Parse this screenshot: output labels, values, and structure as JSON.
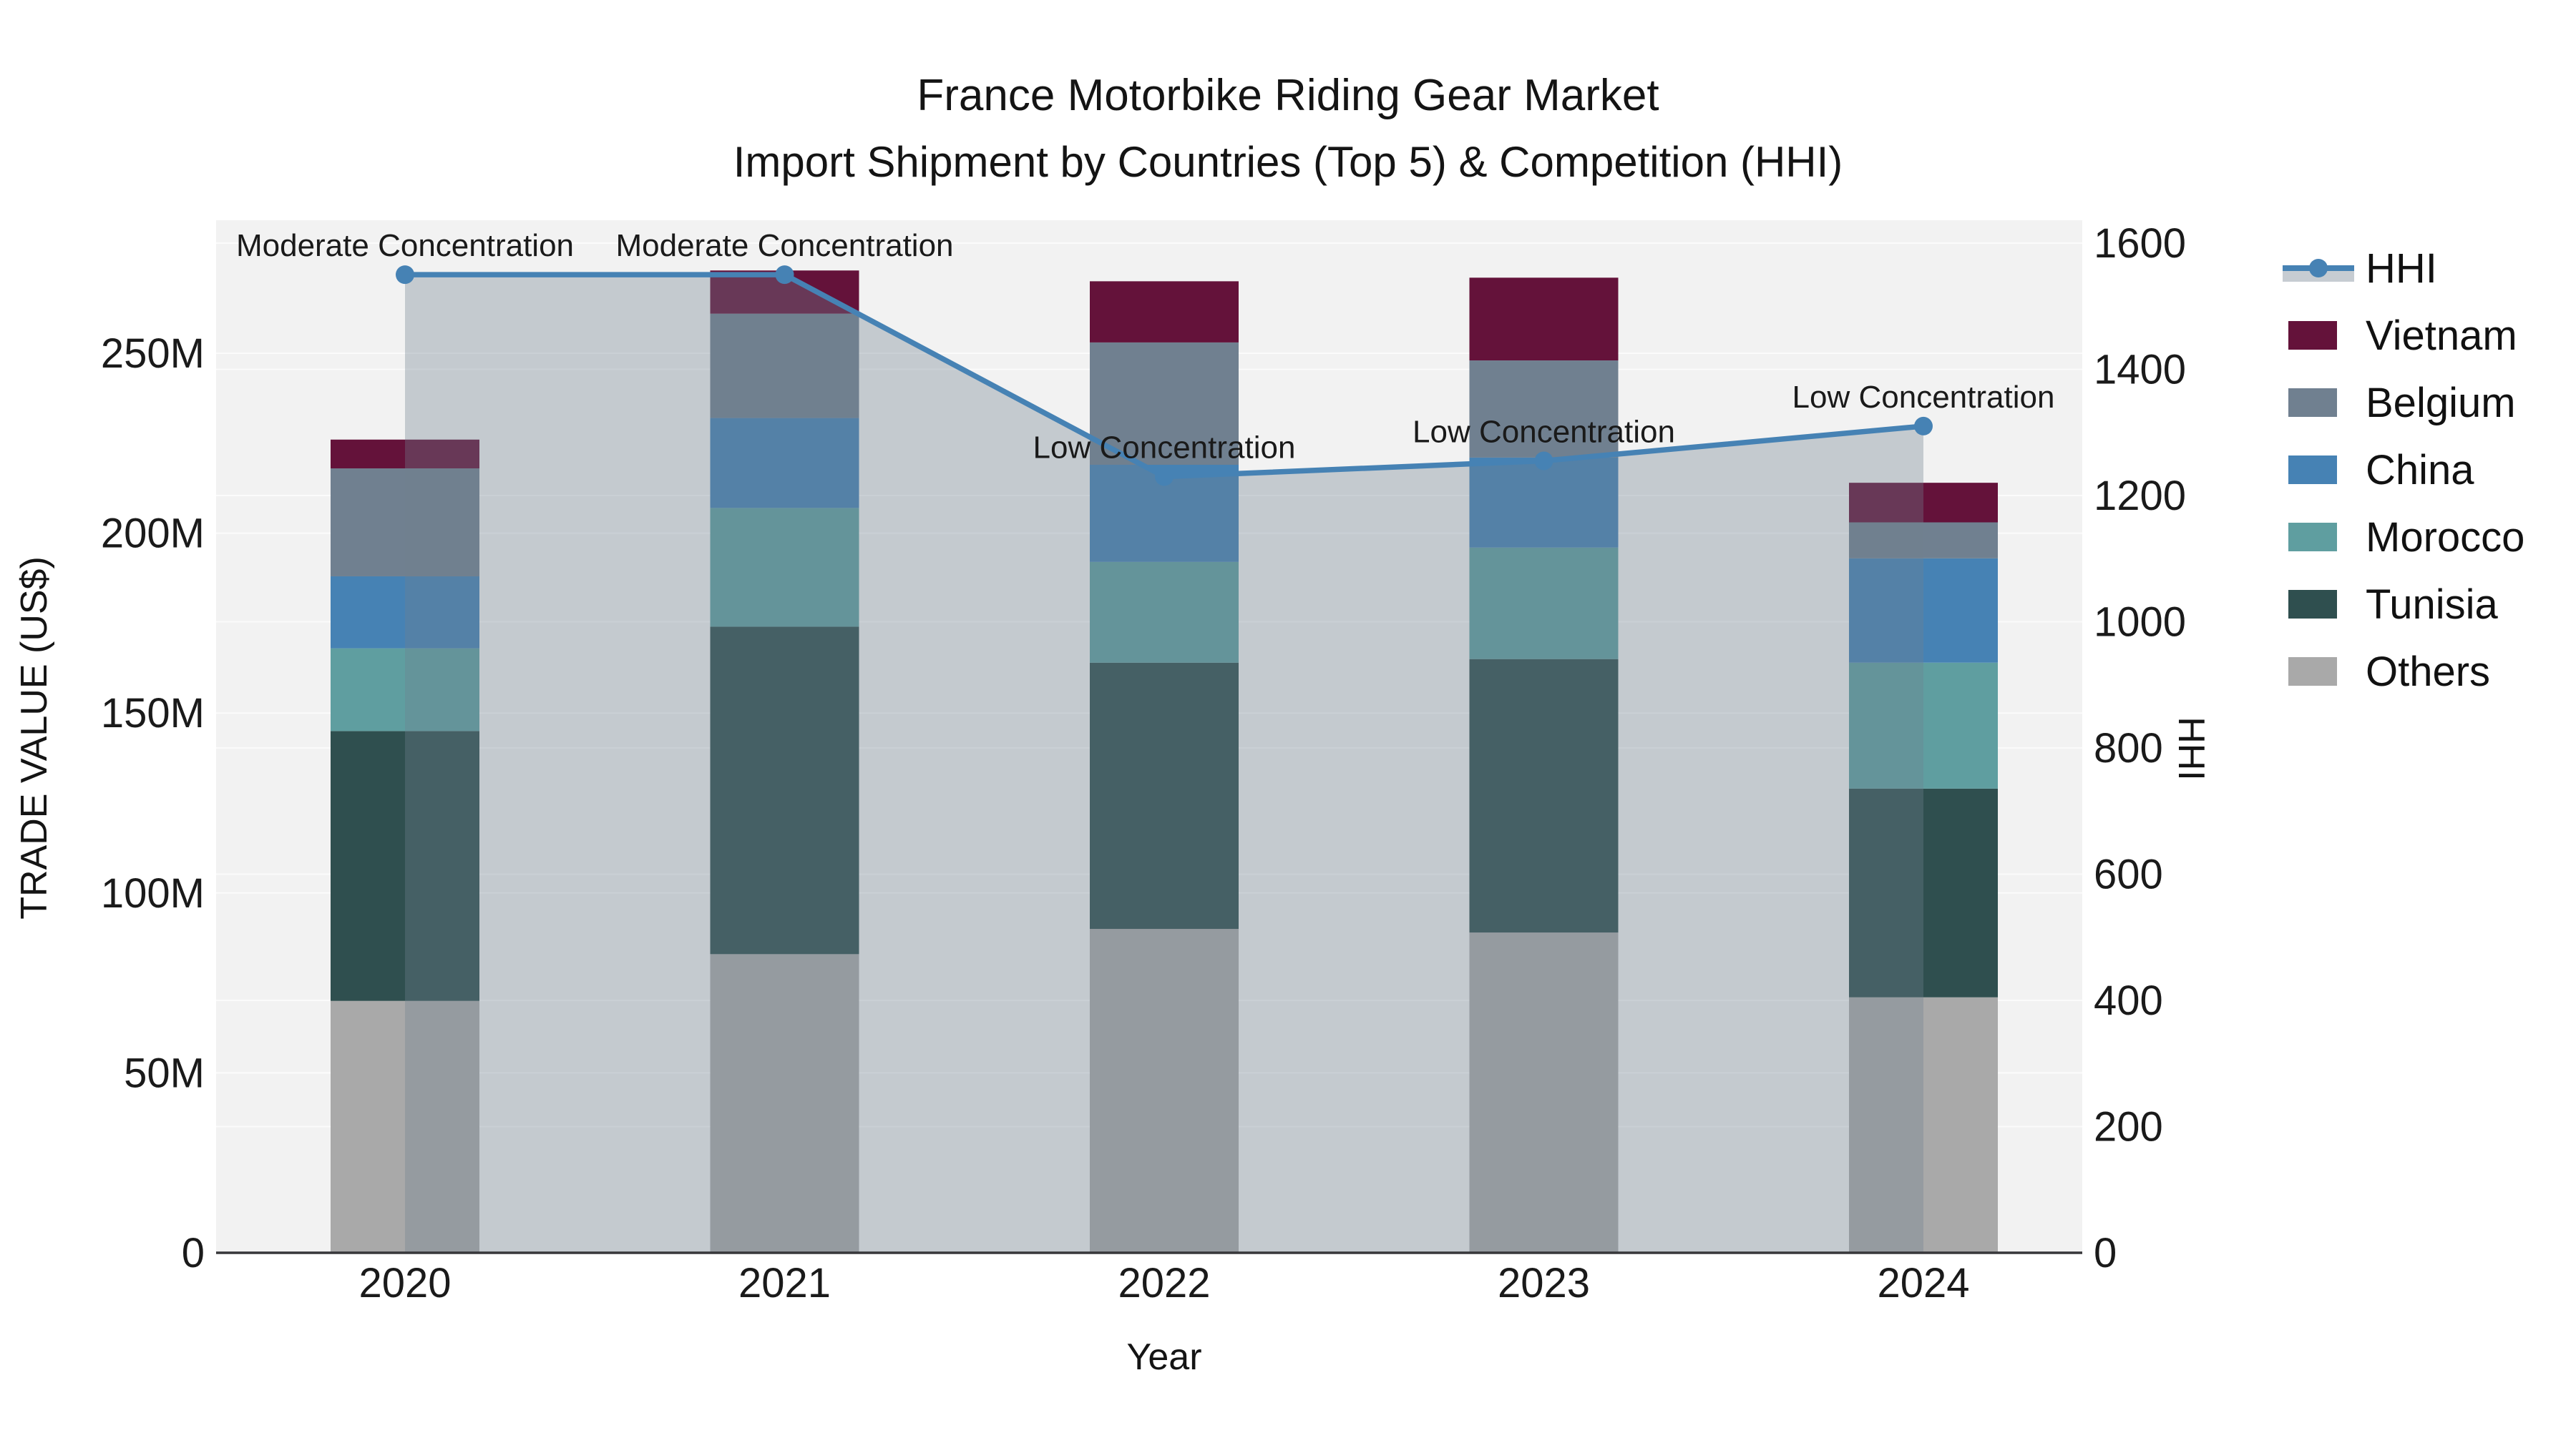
{
  "title": "France Motorbike Riding Gear Market",
  "subtitle": "Import Shipment by Countries (Top 5) & Competition (HHI)",
  "chart_data": {
    "type": "combo-stacked-bar-line",
    "x_label": "Year",
    "y_left_label": "TRADE VALUE (US$)",
    "y_right_label": "HHI",
    "categories": [
      "2020",
      "2021",
      "2022",
      "2023",
      "2024"
    ],
    "y_left_axis": {
      "tick_labels": [
        "0",
        "50M",
        "100M",
        "150M",
        "200M",
        "250M"
      ],
      "tick_values": [
        0,
        50,
        100,
        150,
        200,
        250
      ],
      "unit": "millions US$",
      "range": [
        0,
        287
      ]
    },
    "y_right_axis": {
      "tick_labels": [
        "0",
        "200",
        "400",
        "600",
        "800",
        "1000",
        "1200",
        "1400",
        "1600"
      ],
      "tick_values": [
        0,
        200,
        400,
        600,
        800,
        1000,
        1200,
        1400,
        1600
      ],
      "range": [
        0,
        1600
      ]
    },
    "stack_order_bottom_to_top": [
      "Others",
      "Tunisia",
      "Morocco",
      "China",
      "Belgium",
      "Vietnam"
    ],
    "series": [
      {
        "name": "Others",
        "color": "#a9a9a9",
        "values": [
          70,
          83,
          90,
          89,
          71
        ]
      },
      {
        "name": "Tunisia",
        "color": "#2f4f4f",
        "values": [
          75,
          91,
          74,
          76,
          58
        ]
      },
      {
        "name": "Morocco",
        "color": "#5f9ea0",
        "values": [
          23,
          33,
          28,
          31,
          35
        ]
      },
      {
        "name": "China",
        "color": "#4682b4",
        "values": [
          20,
          25,
          27,
          25,
          29
        ]
      },
      {
        "name": "Belgium",
        "color": "#708090",
        "values": [
          30,
          29,
          34,
          27,
          10
        ]
      },
      {
        "name": "Vietnam",
        "color": "#64123a",
        "values": [
          8,
          12,
          17,
          23,
          11
        ]
      }
    ],
    "line": {
      "name": "HHI",
      "color": "#4682b4",
      "area_fill": "rgba(112,128,144,0.35)",
      "values": [
        1550,
        1550,
        1230,
        1255,
        1310
      ],
      "annotations": [
        "Moderate Concentration",
        "Moderate Concentration",
        "Low Concentration",
        "Low Concentration",
        "Low Concentration"
      ]
    },
    "legend_order": [
      "HHI",
      "Vietnam",
      "Belgium",
      "China",
      "Morocco",
      "Tunisia",
      "Others"
    ],
    "legend_band_color": "#c6ccd2",
    "plot_bg": "#f2f2f2",
    "grid_color": "#fbfbfb",
    "axis_color": "#37373a"
  }
}
